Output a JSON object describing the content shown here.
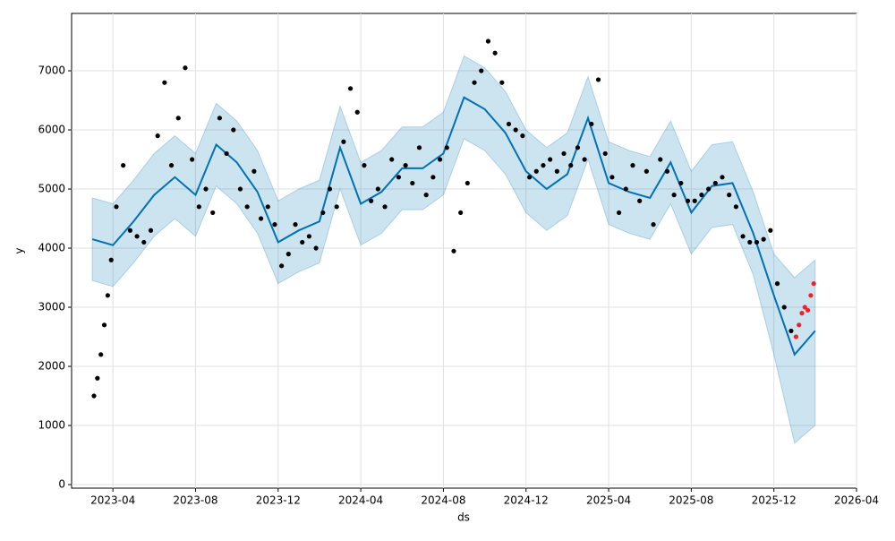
{
  "chart_data": {
    "type": "line",
    "xlabel": "ds",
    "ylabel": "y",
    "xlim": [
      "2023-02",
      "2026-04"
    ],
    "xticks": [
      "2023-04",
      "2023-08",
      "2023-12",
      "2024-04",
      "2024-08",
      "2024-12",
      "2025-04",
      "2025-08",
      "2025-12",
      "2026-04"
    ],
    "ylim": [
      -60,
      7970
    ],
    "yticks": [
      0,
      1000,
      2000,
      3000,
      4000,
      5000,
      6000,
      7000
    ],
    "grid": true,
    "x": [
      "2023-03",
      "2023-04",
      "2023-05",
      "2023-06",
      "2023-07",
      "2023-08",
      "2023-09",
      "2023-10",
      "2023-11",
      "2023-12",
      "2024-01",
      "2024-02",
      "2024-03",
      "2024-04",
      "2024-05",
      "2024-06",
      "2024-07",
      "2024-08",
      "2024-09",
      "2024-10",
      "2024-11",
      "2024-12",
      "2025-01",
      "2025-02",
      "2025-03",
      "2025-04",
      "2025-05",
      "2025-06",
      "2025-07",
      "2025-08",
      "2025-09",
      "2025-10",
      "2025-11",
      "2025-12",
      "2026-01",
      "2026-02"
    ],
    "series": [
      {
        "color": "#0072b2",
        "values": [
          4150,
          4050,
          4450,
          4900,
          5200,
          4900,
          5750,
          5450,
          4950,
          4100,
          4300,
          4450,
          5700,
          4750,
          4950,
          5350,
          5350,
          5600,
          6550,
          6350,
          5950,
          5300,
          5000,
          5250,
          6200,
          5100,
          4950,
          4850,
          5450,
          4600,
          5050,
          5100,
          4250,
          3200,
          2200,
          2600
        ]
      }
    ],
    "band": {
      "color": "#0072b2",
      "lower": [
        3450,
        3350,
        3750,
        4200,
        4500,
        4200,
        5050,
        4750,
        4250,
        3400,
        3600,
        3750,
        5000,
        4050,
        4250,
        4650,
        4650,
        4900,
        5850,
        5650,
        5250,
        4600,
        4300,
        4550,
        5500,
        4400,
        4250,
        4150,
        4750,
        3900,
        4350,
        4400,
        3550,
        2200,
        700,
        1000
      ],
      "upper": [
        4850,
        4750,
        5150,
        5600,
        5900,
        5600,
        6450,
        6150,
        5650,
        4800,
        5000,
        5150,
        6400,
        5450,
        5650,
        6050,
        6050,
        6300,
        7250,
        7050,
        6650,
        6000,
        5700,
        5950,
        6900,
        5800,
        5650,
        5550,
        6150,
        5300,
        5750,
        5800,
        4950,
        3900,
        3500,
        3800
      ]
    },
    "points": {
      "color": "#000000",
      "x": [
        "2023-03",
        "2023-03",
        "2023-03",
        "2023-03",
        "2023-03",
        "2023-03",
        "2023-04",
        "2023-04",
        "2023-04",
        "2023-05",
        "2023-05",
        "2023-05",
        "2023-06",
        "2023-06",
        "2023-06",
        "2023-07",
        "2023-07",
        "2023-07",
        "2023-08",
        "2023-08",
        "2023-08",
        "2023-09",
        "2023-09",
        "2023-09",
        "2023-10",
        "2023-10",
        "2023-10",
        "2023-11",
        "2023-11",
        "2023-11",
        "2023-12",
        "2023-12",
        "2023-12",
        "2024-01",
        "2024-01",
        "2024-01",
        "2024-02",
        "2024-02",
        "2024-02",
        "2024-03",
        "2024-03",
        "2024-03",
        "2024-04",
        "2024-04",
        "2024-04",
        "2024-05",
        "2024-05",
        "2024-05",
        "2024-06",
        "2024-06",
        "2024-06",
        "2024-07",
        "2024-07",
        "2024-07",
        "2024-08",
        "2024-08",
        "2024-08",
        "2024-09",
        "2024-09",
        "2024-09",
        "2024-10",
        "2024-10",
        "2024-10",
        "2024-11",
        "2024-11",
        "2024-11",
        "2024-12",
        "2024-12",
        "2024-12",
        "2025-01",
        "2025-01",
        "2025-01",
        "2025-02",
        "2025-02",
        "2025-02",
        "2025-03",
        "2025-03",
        "2025-03",
        "2025-04",
        "2025-04",
        "2025-04",
        "2025-05",
        "2025-05",
        "2025-05",
        "2025-06",
        "2025-06",
        "2025-06",
        "2025-07",
        "2025-07",
        "2025-07",
        "2025-08",
        "2025-08",
        "2025-08",
        "2025-09",
        "2025-09",
        "2025-09",
        "2025-10",
        "2025-10",
        "2025-10",
        "2025-11",
        "2025-11",
        "2025-11",
        "2025-12",
        "2025-12",
        "2025-12"
      ],
      "values": [
        1500,
        1800,
        2200,
        2700,
        3200,
        3800,
        4700,
        5400,
        4300,
        4200,
        4100,
        4300,
        5900,
        6800,
        5400,
        6200,
        7050,
        5500,
        4700,
        5000,
        4600,
        6200,
        5600,
        6000,
        5000,
        4700,
        5300,
        4500,
        4700,
        4400,
        3700,
        3900,
        4400,
        4100,
        4200,
        4000,
        4600,
        5000,
        4700,
        5800,
        6700,
        6300,
        5400,
        4800,
        5000,
        4700,
        5500,
        5200,
        5400,
        5100,
        5700,
        4900,
        5200,
        5500,
        5700,
        3950,
        4600,
        5100,
        6800,
        7000,
        7500,
        7300,
        6800,
        6100,
        6000,
        5900,
        5200,
        5300,
        5400,
        5500,
        5300,
        5600,
        5400,
        5700,
        5500,
        6100,
        6850,
        5600,
        5200,
        4600,
        5000,
        5400,
        4800,
        5300,
        4400,
        5500,
        5300,
        4900,
        5100,
        4800,
        4800,
        4900,
        5000,
        5100,
        5200,
        4900,
        4700,
        4200,
        4100,
        4100,
        4150,
        4300,
        3400,
        3000,
        2600
      ]
    },
    "recent_points": {
      "color": "#e8262a",
      "x": [
        "2026-01",
        "2026-01",
        "2026-01",
        "2026-01",
        "2026-01",
        "2026-01",
        "2026-01"
      ],
      "values": [
        2500,
        2700,
        2900,
        3000,
        2950,
        3200,
        3400
      ]
    }
  }
}
